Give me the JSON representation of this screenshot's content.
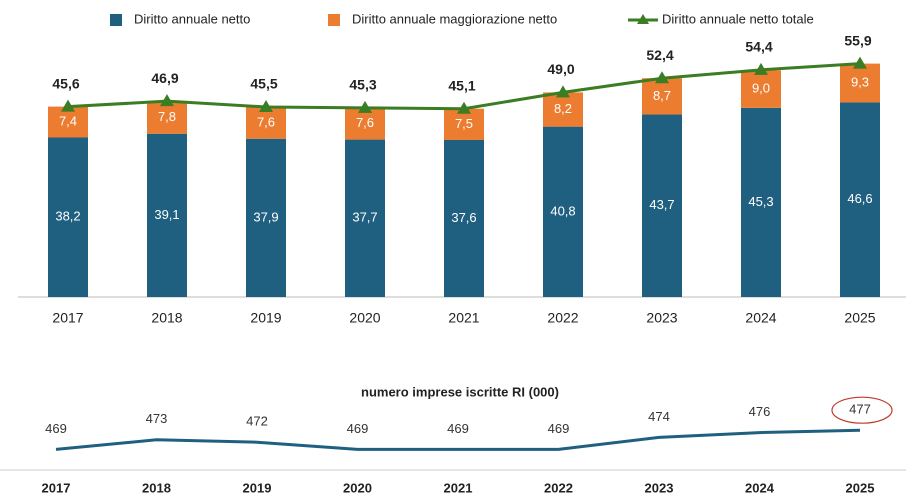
{
  "chart_data": [
    {
      "type": "bar",
      "categories": [
        "2017",
        "2018",
        "2019",
        "2020",
        "2021",
        "2022",
        "2023",
        "2024",
        "2025"
      ],
      "ylim": [
        0,
        57
      ],
      "series": [
        {
          "name": "Diritto annuale netto",
          "color": "#1f5f80",
          "values": [
            38.2,
            39.1,
            37.9,
            37.7,
            37.6,
            40.8,
            43.7,
            45.3,
            46.6
          ],
          "value_labels": [
            "38,2",
            "39,1",
            "37,9",
            "37,7",
            "37,6",
            "40,8",
            "43,7",
            "45,3",
            "46,6"
          ]
        },
        {
          "name": "Diritto annuale maggiorazione netto",
          "color": "#ec7c30",
          "values": [
            7.4,
            7.8,
            7.6,
            7.6,
            7.5,
            8.2,
            8.7,
            9.0,
            9.3
          ],
          "value_labels": [
            "7,4",
            "7,8",
            "7,6",
            "7,6",
            "7,5",
            "8,2",
            "8,7",
            "9,0",
            "9,3"
          ]
        },
        {
          "name": "Diritto annuale netto totale",
          "color": "#3a7d22",
          "type": "line",
          "values": [
            45.6,
            46.9,
            45.5,
            45.3,
            45.1,
            49.0,
            52.4,
            54.4,
            55.9
          ],
          "value_labels": [
            "45,6",
            "46,9",
            "45,5",
            "45,3",
            "45,1",
            "49,0",
            "52,4",
            "54,4",
            "55,9"
          ]
        }
      ]
    },
    {
      "type": "line",
      "title": "numero imprese iscritte RI (000)",
      "categories": [
        "2017",
        "2018",
        "2019",
        "2020",
        "2021",
        "2022",
        "2023",
        "2024",
        "2025"
      ],
      "ylim": [
        465,
        480
      ],
      "color": "#1f5f80",
      "values": [
        469,
        473,
        472,
        469,
        469,
        469,
        474,
        476,
        477
      ]
    }
  ]
}
